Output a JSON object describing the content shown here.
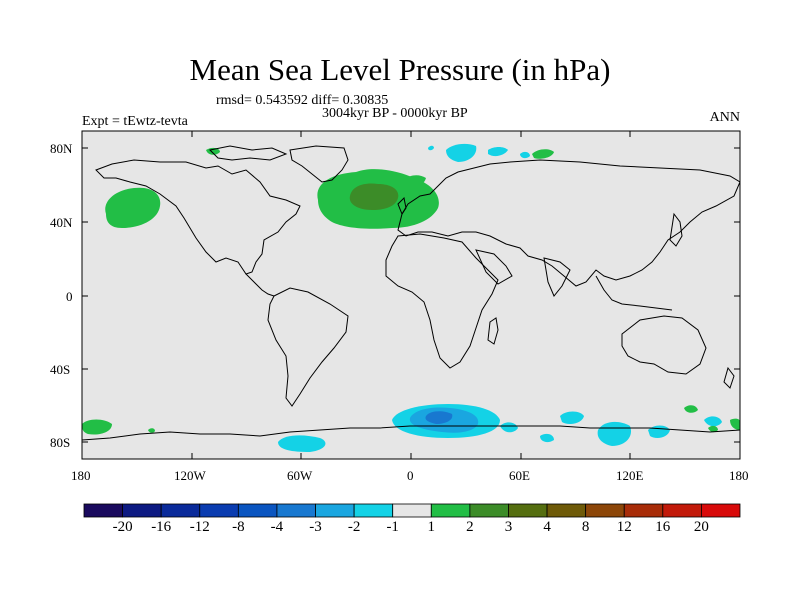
{
  "title": "Mean Sea Level Pressure (in hPa)",
  "stats_text": "rmsd= 0.543592 diff= 0.30835",
  "period_text": "3004kyr BP - 0000kyr BP",
  "experiment_text": "Expt = tEwtz-tevta",
  "season_text": "ANN",
  "y_axis_labels": [
    "80N",
    "40N",
    "0",
    "40S",
    "80S"
  ],
  "x_axis_labels": [
    "180",
    "120W",
    "60W",
    "0",
    "60E",
    "120E",
    "180"
  ],
  "colorbar": {
    "labels": [
      "-20",
      "-16",
      "-12",
      "-8",
      "-4",
      "-3",
      "-2",
      "-1",
      "1",
      "2",
      "3",
      "4",
      "8",
      "12",
      "16",
      "20"
    ],
    "colors": [
      "#1a0a5e",
      "#0d1a82",
      "#0a2a9a",
      "#0a3cb0",
      "#0a55c0",
      "#1878d0",
      "#1aa6e0",
      "#14d2e6",
      "#e6e6e6",
      "#22be46",
      "#3c8c28",
      "#556e10",
      "#6e5a08",
      "#8c4608",
      "#a82c08",
      "#c21a0a",
      "#d80a0a"
    ]
  },
  "colors": {
    "land_ocean_background": "#e6e6e6",
    "coastline": "#000000"
  }
}
